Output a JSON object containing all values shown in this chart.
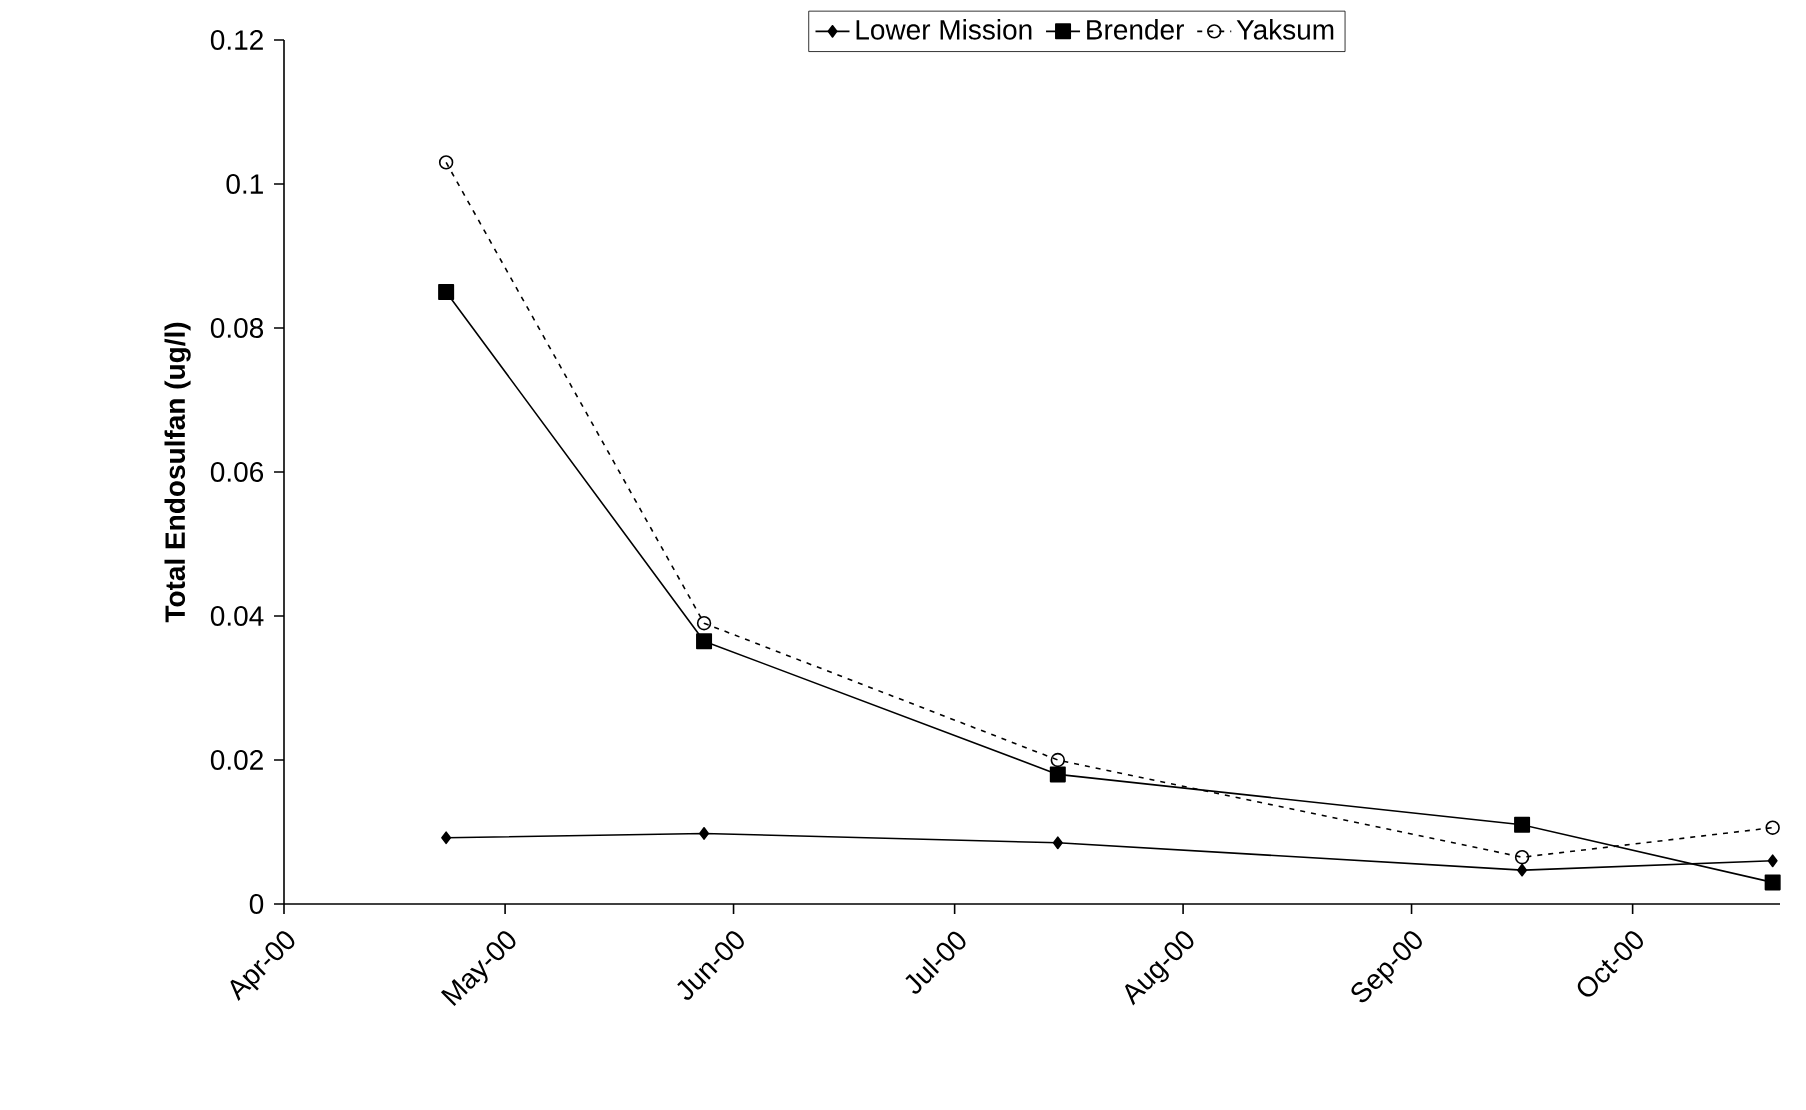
{
  "chart_data": {
    "type": "line",
    "ylabel": "Total Endosulfan (ug/l)",
    "x": [
      "2000-04-23",
      "2000-05-28",
      "2000-07-15",
      "2000-09-16",
      "2000-10-20"
    ],
    "series": [
      {
        "name": "Lower Mission",
        "color": "#000000",
        "marker": "diamond",
        "line_style": "solid",
        "values": [
          0.0092,
          0.0098,
          0.0085,
          0.0047,
          0.006
        ]
      },
      {
        "name": "Brender",
        "color": "#000000",
        "marker": "square",
        "line_style": "solid",
        "values": [
          0.085,
          0.0365,
          0.018,
          0.011,
          0.003
        ]
      },
      {
        "name": "Yaksum",
        "color": "#000000",
        "marker": "circle",
        "line_style": "dotted",
        "values": [
          0.103,
          0.039,
          0.02,
          0.0065,
          0.0106
        ]
      }
    ],
    "xlim": [
      "2000-04-01",
      "2000-10-21"
    ],
    "xticks": [
      {
        "value": "2000-04-01",
        "label": "Apr-00"
      },
      {
        "value": "2000-05-01",
        "label": "May-00"
      },
      {
        "value": "2000-06-01",
        "label": "Jun-00"
      },
      {
        "value": "2000-07-01",
        "label": "Jul-00"
      },
      {
        "value": "2000-08-01",
        "label": "Aug-00"
      },
      {
        "value": "2000-09-01",
        "label": "Sep-00"
      },
      {
        "value": "2000-10-01",
        "label": "Oct-00"
      }
    ],
    "ylim": [
      0,
      0.12
    ],
    "yticks": [
      0,
      0.02,
      0.04,
      0.06,
      0.08,
      0.1,
      0.12
    ],
    "grid": false,
    "legend": "top"
  }
}
